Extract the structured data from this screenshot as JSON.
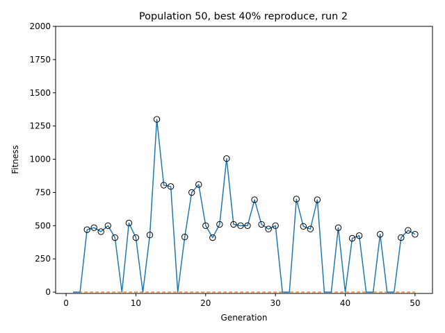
{
  "chart_data": {
    "type": "line",
    "title": "Population 50, best 40% reproduce, run 2",
    "xlabel": "Generation",
    "ylabel": "Fitness",
    "xlim": [
      -1.5,
      52.5
    ],
    "ylim": [
      -10,
      2000
    ],
    "xticks": [
      0,
      10,
      20,
      30,
      40,
      50
    ],
    "yticks": [
      0,
      250,
      500,
      750,
      1000,
      1250,
      1500,
      1750,
      2000
    ],
    "grid": false,
    "colors": {
      "line": "#1f77b4",
      "baseline": "#ff7f0e",
      "marker_edge": "#000000"
    },
    "x": [
      1,
      2,
      3,
      4,
      5,
      6,
      7,
      8,
      9,
      10,
      11,
      12,
      13,
      14,
      15,
      16,
      17,
      18,
      19,
      20,
      21,
      22,
      23,
      24,
      25,
      26,
      27,
      28,
      29,
      30,
      31,
      32,
      33,
      34,
      35,
      36,
      37,
      38,
      39,
      40,
      41,
      42,
      43,
      44,
      45,
      46,
      47,
      48,
      49,
      50
    ],
    "series": [
      {
        "values": [
          0,
          0,
          470,
          485,
          455,
          500,
          410,
          0,
          520,
          410,
          0,
          430,
          1300,
          805,
          795,
          0,
          415,
          750,
          810,
          500,
          410,
          510,
          1005,
          510,
          500,
          500,
          695,
          510,
          475,
          500,
          0,
          0,
          700,
          495,
          475,
          695,
          0,
          0,
          485,
          0,
          405,
          425,
          0,
          0,
          435,
          0,
          0,
          410,
          465,
          435
        ],
        "markers": [
          false,
          false,
          true,
          true,
          true,
          true,
          true,
          false,
          true,
          true,
          false,
          true,
          true,
          true,
          true,
          false,
          true,
          true,
          true,
          true,
          true,
          true,
          true,
          true,
          true,
          true,
          true,
          true,
          true,
          true,
          false,
          false,
          true,
          true,
          true,
          true,
          false,
          false,
          true,
          false,
          true,
          true,
          false,
          false,
          true,
          false,
          false,
          true,
          true,
          true
        ]
      },
      {
        "values": [
          0,
          0,
          0,
          0,
          0,
          0,
          0,
          0,
          0,
          0,
          0,
          0,
          0,
          0,
          0,
          0,
          0,
          0,
          0,
          0,
          0,
          0,
          0,
          0,
          0,
          0,
          0,
          0,
          0,
          0,
          0,
          0,
          0,
          0,
          0,
          0,
          0,
          0,
          0,
          0,
          0,
          0,
          0,
          0,
          0,
          0,
          0,
          0,
          0,
          0
        ],
        "style": "dashed"
      }
    ]
  }
}
